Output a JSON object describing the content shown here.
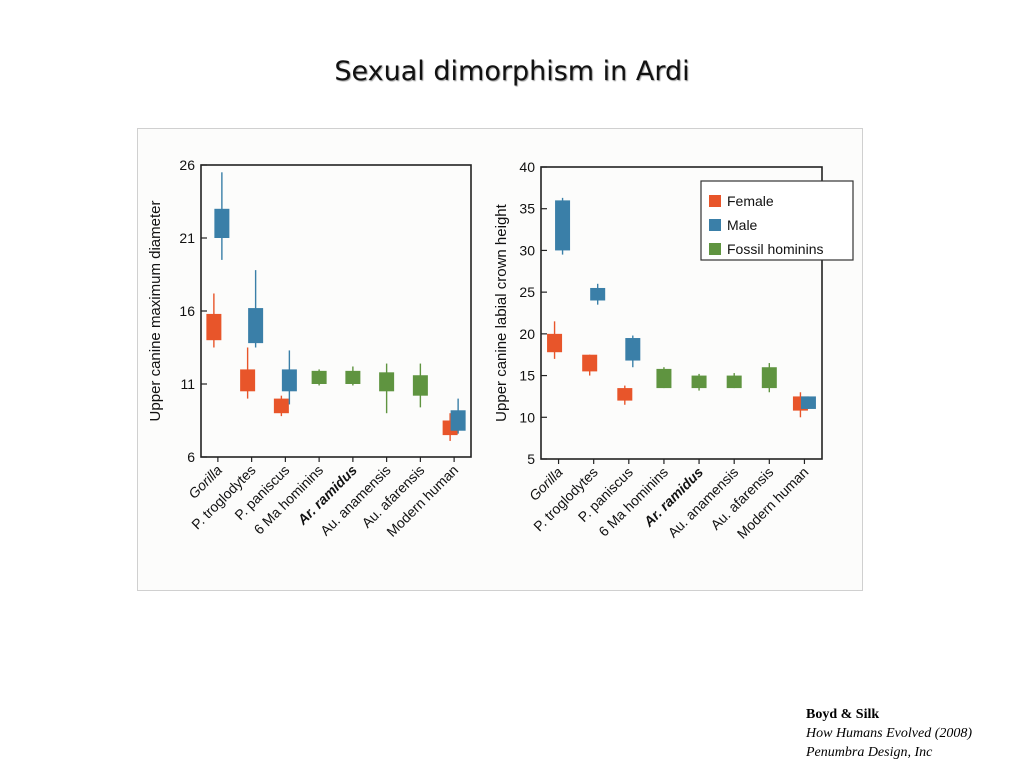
{
  "slide": {
    "title": "Sexual dimorphism in Ardi"
  },
  "credit": {
    "authors": "Boyd & Silk",
    "book": "How Humans Evolved (2008)",
    "design": "Penumbra Design, Inc"
  },
  "colors": {
    "Female": "#e8552a",
    "Male": "#3a7fa8",
    "Fossil hominins": "#5f9440"
  },
  "chart_data": [
    {
      "type": "box",
      "title": "",
      "ylabel": "Upper canine maximum diameter",
      "ylim": [
        6,
        26
      ],
      "yticks": [
        6,
        11,
        16,
        21,
        26
      ],
      "categories": [
        "Gorilla",
        "P. troglodytes",
        "P. paniscus",
        "6 Ma hominins",
        "Ar. ramidus",
        "Au. anamensis",
        "Au. afarensis",
        "Modern human"
      ],
      "italic_categories": [
        0
      ],
      "bold_categories": [
        4
      ],
      "legend": null,
      "series": [
        {
          "name": "Female",
          "boxes": [
            {
              "category": 0,
              "min": 13.5,
              "q1": 14.0,
              "q3": 15.8,
              "max": 17.2
            },
            {
              "category": 1,
              "min": 10.0,
              "q1": 10.5,
              "q3": 12.0,
              "max": 13.5
            },
            {
              "category": 2,
              "min": 8.8,
              "q1": 9.0,
              "q3": 10.0,
              "max": 10.2
            },
            {
              "category": 7,
              "min": 7.1,
              "q1": 7.5,
              "q3": 8.5,
              "max": 9.0
            }
          ]
        },
        {
          "name": "Male",
          "boxes": [
            {
              "category": 0,
              "min": 19.5,
              "q1": 21.0,
              "q3": 23.0,
              "max": 25.5
            },
            {
              "category": 1,
              "min": 13.5,
              "q1": 13.8,
              "q3": 16.2,
              "max": 18.8
            },
            {
              "category": 2,
              "min": 9.6,
              "q1": 10.5,
              "q3": 12.0,
              "max": 13.3
            },
            {
              "category": 7,
              "min": 7.6,
              "q1": 7.8,
              "q3": 9.2,
              "max": 10.0
            }
          ]
        },
        {
          "name": "Fossil hominins",
          "boxes": [
            {
              "category": 3,
              "min": 10.9,
              "q1": 11.0,
              "q3": 11.9,
              "max": 12.0
            },
            {
              "category": 4,
              "min": 10.9,
              "q1": 11.0,
              "q3": 11.9,
              "max": 12.2
            },
            {
              "category": 5,
              "min": 9.0,
              "q1": 10.5,
              "q3": 11.8,
              "max": 12.4
            },
            {
              "category": 6,
              "min": 9.4,
              "q1": 10.2,
              "q3": 11.6,
              "max": 12.4
            }
          ]
        }
      ]
    },
    {
      "type": "box",
      "title": "",
      "ylabel": "Upper canine labial crown height",
      "ylim": [
        5,
        40
      ],
      "yticks": [
        5,
        10,
        15,
        20,
        25,
        30,
        35,
        40
      ],
      "categories": [
        "Gorilla",
        "P. troglodytes",
        "P. paniscus",
        "6 Ma hominins",
        "Ar. ramidus",
        "Au. anamensis",
        "Au. afarensis",
        "Modern human"
      ],
      "italic_categories": [
        0
      ],
      "bold_categories": [
        4
      ],
      "legend": "top-right",
      "series": [
        {
          "name": "Female",
          "boxes": [
            {
              "category": 0,
              "min": 17.0,
              "q1": 17.8,
              "q3": 20.0,
              "max": 21.5
            },
            {
              "category": 1,
              "min": 15.0,
              "q1": 15.5,
              "q3": 17.5,
              "max": 17.5
            },
            {
              "category": 2,
              "min": 11.5,
              "q1": 12.0,
              "q3": 13.5,
              "max": 13.8
            },
            {
              "category": 7,
              "min": 10.0,
              "q1": 10.8,
              "q3": 12.5,
              "max": 13.0
            }
          ]
        },
        {
          "name": "Male",
          "boxes": [
            {
              "category": 0,
              "min": 29.5,
              "q1": 30.0,
              "q3": 36.0,
              "max": 36.3
            },
            {
              "category": 1,
              "min": 23.5,
              "q1": 24.0,
              "q3": 25.5,
              "max": 26.0
            },
            {
              "category": 2,
              "min": 16.0,
              "q1": 16.8,
              "q3": 19.5,
              "max": 19.8
            },
            {
              "category": 7,
              "min": 11.0,
              "q1": 11.0,
              "q3": 12.5,
              "max": 12.5
            }
          ]
        },
        {
          "name": "Fossil hominins",
          "boxes": [
            {
              "category": 3,
              "min": 13.5,
              "q1": 13.5,
              "q3": 15.8,
              "max": 16.0
            },
            {
              "category": 4,
              "min": 13.2,
              "q1": 13.5,
              "q3": 15.0,
              "max": 15.2
            },
            {
              "category": 5,
              "min": 13.5,
              "q1": 13.5,
              "q3": 15.0,
              "max": 15.3
            },
            {
              "category": 6,
              "min": 13.0,
              "q1": 13.5,
              "q3": 16.0,
              "max": 16.5
            }
          ]
        }
      ]
    }
  ]
}
